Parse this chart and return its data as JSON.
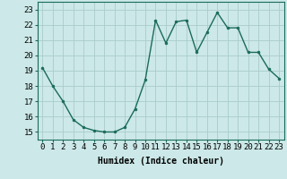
{
  "x": [
    0,
    1,
    2,
    3,
    4,
    5,
    6,
    7,
    8,
    9,
    10,
    11,
    12,
    13,
    14,
    15,
    16,
    17,
    18,
    19,
    20,
    21,
    22,
    23
  ],
  "y": [
    19.2,
    18.0,
    17.0,
    15.8,
    15.3,
    15.1,
    15.0,
    15.0,
    15.3,
    16.5,
    18.4,
    22.3,
    20.8,
    22.2,
    22.3,
    20.2,
    21.5,
    22.8,
    21.8,
    21.8,
    20.2,
    20.2,
    19.1,
    18.5
  ],
  "line_color": "#1a6b5a",
  "marker": "o",
  "marker_size": 2.0,
  "line_width": 1.0,
  "bg_color": "#cce8e8",
  "grid_color": "#aacccc",
  "xlabel": "Humidex (Indice chaleur)",
  "xlim": [
    -0.5,
    23.5
  ],
  "ylim": [
    14.5,
    23.5
  ],
  "yticks": [
    15,
    16,
    17,
    18,
    19,
    20,
    21,
    22,
    23
  ],
  "xticks": [
    0,
    1,
    2,
    3,
    4,
    5,
    6,
    7,
    8,
    9,
    10,
    11,
    12,
    13,
    14,
    15,
    16,
    17,
    18,
    19,
    20,
    21,
    22,
    23
  ],
  "xlabel_fontsize": 7,
  "tick_fontsize": 6.5
}
